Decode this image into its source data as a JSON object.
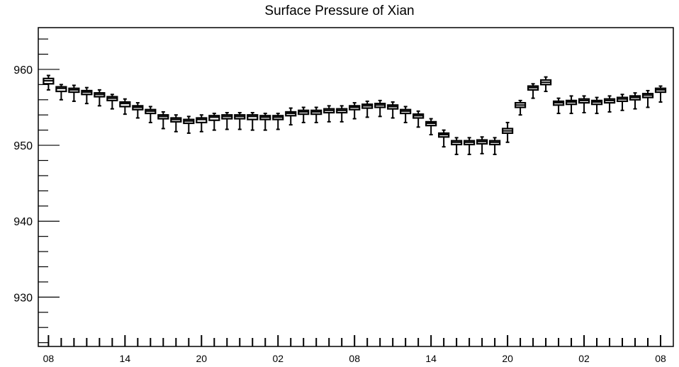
{
  "chart_data": {
    "type": "box",
    "title": "Surface Pressure of Xian",
    "xlabel": "",
    "ylabel": "",
    "ylim": [
      923.5,
      965.5
    ],
    "y_ticks": [
      930,
      940,
      950,
      960
    ],
    "x_tick_labels": [
      "08",
      "14",
      "20",
      "02",
      "08",
      "14",
      "20",
      "02",
      "08"
    ],
    "x_tick_hours": [
      0,
      6,
      12,
      18,
      24,
      30,
      36,
      42,
      48
    ],
    "x_range_hours": [
      -0.8,
      49
    ],
    "grid": false,
    "series": [
      {
        "values": [
          {
            "hour": 0,
            "low": 957.3,
            "q1": 958.1,
            "median": 958.5,
            "q3": 958.8,
            "high": 959.2
          },
          {
            "hour": 1,
            "low": 956.0,
            "q1": 957.1,
            "median": 957.5,
            "q3": 957.7,
            "high": 958.0
          },
          {
            "hour": 2,
            "low": 955.8,
            "q1": 957.0,
            "median": 957.3,
            "q3": 957.5,
            "high": 957.9
          },
          {
            "hour": 3,
            "low": 955.5,
            "q1": 956.7,
            "median": 957.0,
            "q3": 957.2,
            "high": 957.6
          },
          {
            "hour": 4,
            "low": 955.2,
            "q1": 956.4,
            "median": 956.7,
            "q3": 956.9,
            "high": 957.3
          },
          {
            "hour": 5,
            "low": 954.8,
            "q1": 955.9,
            "median": 956.2,
            "q3": 956.4,
            "high": 956.7
          },
          {
            "hour": 6,
            "low": 954.1,
            "q1": 955.1,
            "median": 955.5,
            "q3": 955.7,
            "high": 956.1
          },
          {
            "hour": 7,
            "low": 953.6,
            "q1": 954.7,
            "median": 955.0,
            "q3": 955.2,
            "high": 955.6
          },
          {
            "hour": 8,
            "low": 953.0,
            "q1": 954.2,
            "median": 954.5,
            "q3": 954.7,
            "high": 955.1
          },
          {
            "hour": 9,
            "low": 952.2,
            "q1": 953.5,
            "median": 953.8,
            "q3": 954.0,
            "high": 954.4
          },
          {
            "hour": 10,
            "low": 951.8,
            "q1": 953.1,
            "median": 953.4,
            "q3": 953.6,
            "high": 954.0
          },
          {
            "hour": 11,
            "low": 951.6,
            "q1": 952.9,
            "median": 953.2,
            "q3": 953.4,
            "high": 953.8
          },
          {
            "hour": 12,
            "low": 951.8,
            "q1": 953.0,
            "median": 953.4,
            "q3": 953.6,
            "high": 954.0
          },
          {
            "hour": 13,
            "low": 952.0,
            "q1": 953.3,
            "median": 953.7,
            "q3": 953.9,
            "high": 954.2
          },
          {
            "hour": 14,
            "low": 952.1,
            "q1": 953.5,
            "median": 953.8,
            "q3": 954.0,
            "high": 954.3
          },
          {
            "hour": 15,
            "low": 952.1,
            "q1": 953.5,
            "median": 953.8,
            "q3": 954.0,
            "high": 954.3
          },
          {
            "hour": 16,
            "low": 952.0,
            "q1": 953.4,
            "median": 953.8,
            "q3": 954.0,
            "high": 954.3
          },
          {
            "hour": 17,
            "low": 952.0,
            "q1": 953.4,
            "median": 953.7,
            "q3": 953.9,
            "high": 954.2
          },
          {
            "hour": 18,
            "low": 952.1,
            "q1": 953.4,
            "median": 953.7,
            "q3": 953.9,
            "high": 954.2
          },
          {
            "hour": 19,
            "low": 952.7,
            "q1": 953.9,
            "median": 954.2,
            "q3": 954.4,
            "high": 954.9
          },
          {
            "hour": 20,
            "low": 953.0,
            "q1": 954.1,
            "median": 954.4,
            "q3": 954.6,
            "high": 955.0
          },
          {
            "hour": 21,
            "low": 953.0,
            "q1": 954.1,
            "median": 954.4,
            "q3": 954.6,
            "high": 955.0
          },
          {
            "hour": 22,
            "low": 953.1,
            "q1": 954.3,
            "median": 954.6,
            "q3": 954.8,
            "high": 955.2
          },
          {
            "hour": 23,
            "low": 953.1,
            "q1": 954.3,
            "median": 954.6,
            "q3": 954.8,
            "high": 955.2
          },
          {
            "hour": 24,
            "low": 953.5,
            "q1": 954.7,
            "median": 955.0,
            "q3": 955.2,
            "high": 955.6
          },
          {
            "hour": 25,
            "low": 953.7,
            "q1": 954.9,
            "median": 955.2,
            "q3": 955.4,
            "high": 955.8
          },
          {
            "hour": 26,
            "low": 953.8,
            "q1": 955.0,
            "median": 955.3,
            "q3": 955.5,
            "high": 955.9
          },
          {
            "hour": 27,
            "low": 953.6,
            "q1": 954.8,
            "median": 955.1,
            "q3": 955.3,
            "high": 955.7
          },
          {
            "hour": 28,
            "low": 953.0,
            "q1": 954.2,
            "median": 954.5,
            "q3": 954.7,
            "high": 955.1
          },
          {
            "hour": 29,
            "low": 952.4,
            "q1": 953.6,
            "median": 953.9,
            "q3": 954.1,
            "high": 954.5
          },
          {
            "hour": 30,
            "low": 951.4,
            "q1": 952.6,
            "median": 952.9,
            "q3": 953.1,
            "high": 953.5
          },
          {
            "hour": 31,
            "low": 949.8,
            "q1": 951.1,
            "median": 951.4,
            "q3": 951.6,
            "high": 952.0
          },
          {
            "hour": 32,
            "low": 948.8,
            "q1": 950.1,
            "median": 950.4,
            "q3": 950.6,
            "high": 951.0
          },
          {
            "hour": 33,
            "low": 948.8,
            "q1": 950.1,
            "median": 950.4,
            "q3": 950.6,
            "high": 951.0
          },
          {
            "hour": 34,
            "low": 948.9,
            "q1": 950.2,
            "median": 950.5,
            "q3": 950.7,
            "high": 951.1
          },
          {
            "hour": 35,
            "low": 948.8,
            "q1": 950.1,
            "median": 950.4,
            "q3": 950.6,
            "high": 951.0
          },
          {
            "hour": 36,
            "low": 950.4,
            "q1": 951.6,
            "median": 951.9,
            "q3": 952.2,
            "high": 953.0
          },
          {
            "hour": 37,
            "low": 954.0,
            "q1": 955.0,
            "median": 955.3,
            "q3": 955.6,
            "high": 955.9
          },
          {
            "hour": 38,
            "low": 956.2,
            "q1": 957.3,
            "median": 957.6,
            "q3": 957.8,
            "high": 958.1
          },
          {
            "hour": 39,
            "low": 957.1,
            "q1": 958.0,
            "median": 958.3,
            "q3": 958.6,
            "high": 959.0
          },
          {
            "hour": 40,
            "low": 954.2,
            "q1": 955.3,
            "median": 955.6,
            "q3": 955.8,
            "high": 956.2
          },
          {
            "hour": 41,
            "low": 954.2,
            "q1": 955.4,
            "median": 955.7,
            "q3": 955.9,
            "high": 956.5
          },
          {
            "hour": 42,
            "low": 954.3,
            "q1": 955.6,
            "median": 955.9,
            "q3": 956.1,
            "high": 956.5
          },
          {
            "hour": 43,
            "low": 954.2,
            "q1": 955.4,
            "median": 955.7,
            "q3": 955.9,
            "high": 956.3
          },
          {
            "hour": 44,
            "low": 954.4,
            "q1": 955.6,
            "median": 955.9,
            "q3": 956.1,
            "high": 956.5
          },
          {
            "hour": 45,
            "low": 954.6,
            "q1": 955.8,
            "median": 956.1,
            "q3": 956.3,
            "high": 956.7
          },
          {
            "hour": 46,
            "low": 954.8,
            "q1": 956.0,
            "median": 956.3,
            "q3": 956.5,
            "high": 956.9
          },
          {
            "hour": 47,
            "low": 955.0,
            "q1": 956.3,
            "median": 956.6,
            "q3": 956.8,
            "high": 957.2
          },
          {
            "hour": 48,
            "low": 955.7,
            "q1": 957.0,
            "median": 957.3,
            "q3": 957.5,
            "high": 957.8
          }
        ]
      }
    ]
  }
}
